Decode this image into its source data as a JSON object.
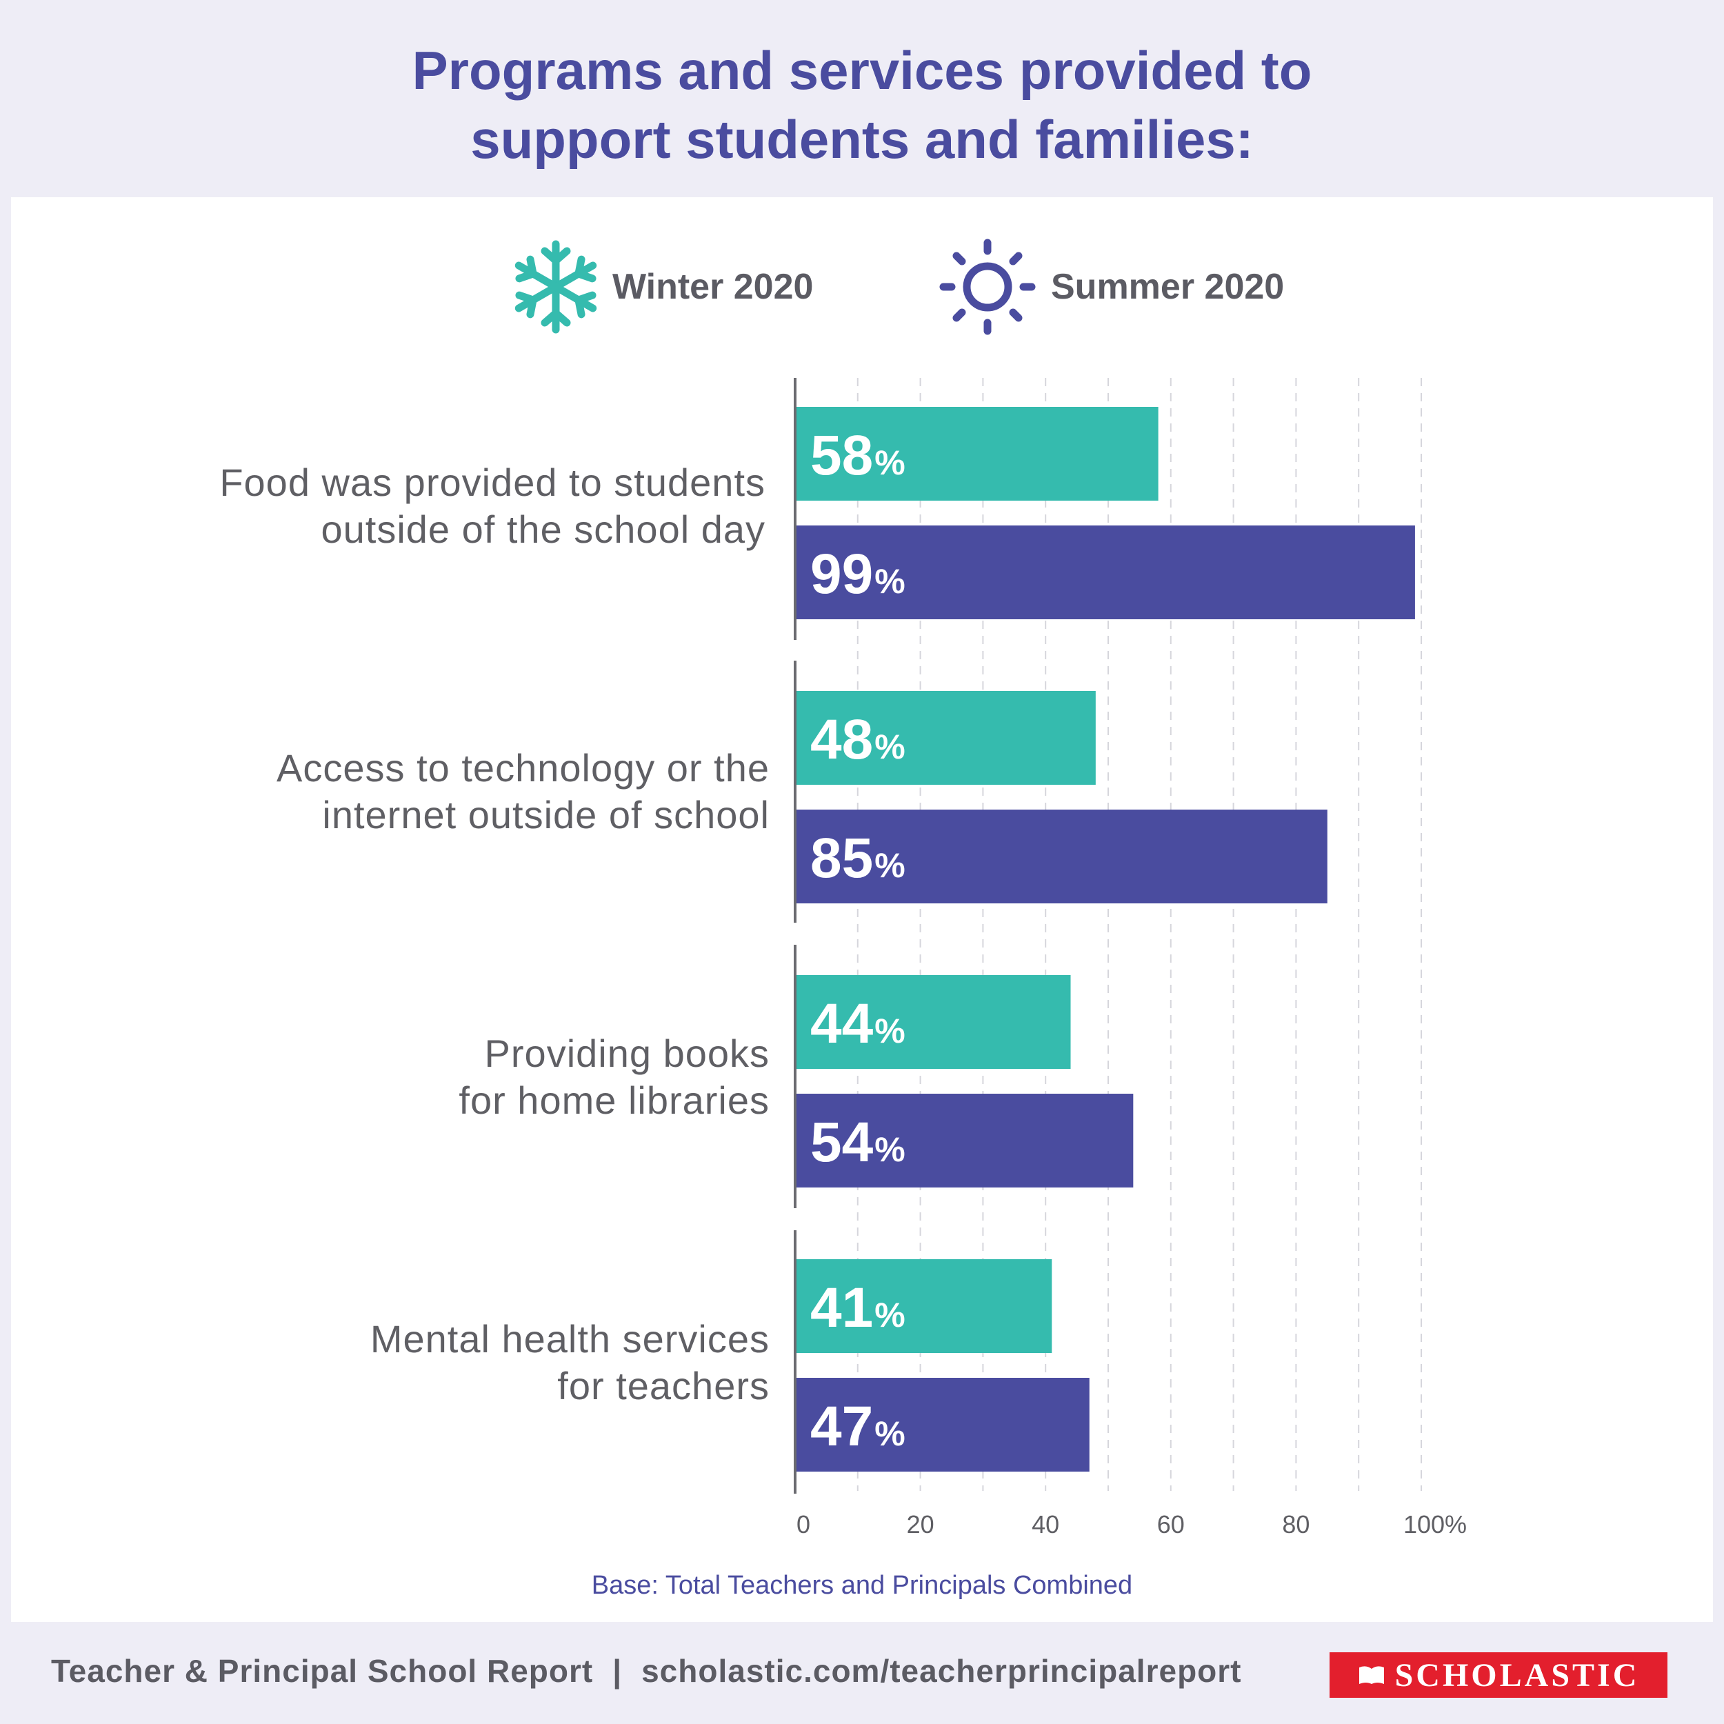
{
  "title": {
    "line1": "Programs and services provided to",
    "line2": "support students and families:"
  },
  "legend": [
    {
      "label": "Winter 2020",
      "icon": "snowflake-icon",
      "color": "#35bbae"
    },
    {
      "label": "Summer 2020",
      "icon": "sun-icon",
      "color": "#4a4c9f"
    }
  ],
  "chart_data": {
    "type": "bar",
    "orientation": "horizontal",
    "title": "Programs and services provided to support students and families:",
    "categories": [
      [
        "Food was provided to students",
        "outside of the school day"
      ],
      [
        "Access to technology or the",
        "internet outside of school"
      ],
      [
        "Providing books",
        "for home libraries"
      ],
      [
        "Mental health services",
        "for teachers"
      ]
    ],
    "series": [
      {
        "name": "Winter 2020",
        "color": "#35bbae",
        "values": [
          58,
          48,
          44,
          41
        ]
      },
      {
        "name": "Summer 2020",
        "color": "#4a4c9f",
        "values": [
          99,
          85,
          54,
          47
        ]
      }
    ],
    "xlim": [
      0,
      100
    ],
    "xticks": [
      "0",
      "20",
      "40",
      "60",
      "80",
      "100%"
    ],
    "grid": "vertical dashed every 10",
    "value_suffix": "%"
  },
  "base_note": "Base: Total Teachers and Principals Combined",
  "footer": {
    "report": "Teacher & Principal School Report",
    "separator": "|",
    "url": "scholastic.com/teacherprincipalreport"
  },
  "logo": {
    "text": "SCHOLASTIC",
    "color": "#e31f2d"
  }
}
